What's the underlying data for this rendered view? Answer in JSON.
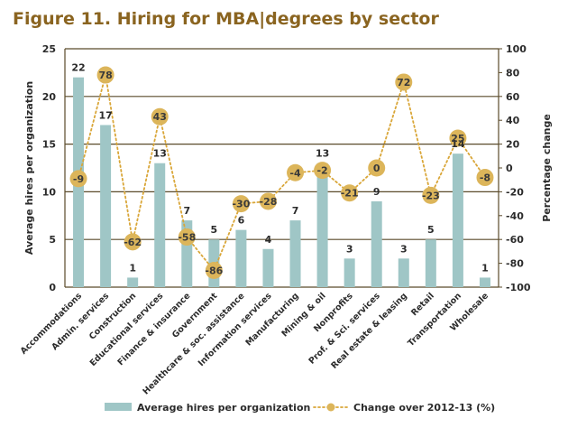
{
  "title": "Figure 11. Hiring for MBA|degrees by sector",
  "colors": {
    "bar": "#9fc6c6",
    "line": "#d9a638",
    "marker": "#dcb55a",
    "title": "#8a6420",
    "grid": "#5a4a2a"
  },
  "chart_data": {
    "type": "bar",
    "categories": [
      "Accommodations",
      "Admin. services",
      "Construction",
      "Educational services",
      "Finance & insurance",
      "Government",
      "Healthcare & soc. assistance",
      "Information services",
      "Manufacturing",
      "Mining & oil",
      "Nonprofits",
      "Prof. & Sci. services",
      "Real estate & leasing",
      "Retail",
      "Transportation",
      "Wholesale"
    ],
    "series": [
      {
        "name": "Average hires per organization",
        "type": "bar",
        "axis": "left",
        "values": [
          22,
          17,
          1,
          13,
          7,
          5,
          6,
          4,
          7,
          13,
          3,
          9,
          3,
          5,
          14,
          1
        ]
      },
      {
        "name": "Change over 2012-13 (%)",
        "type": "line",
        "axis": "right",
        "values": [
          -9,
          78,
          -62,
          43,
          -58,
          -86,
          -30,
          -28,
          -4,
          -2,
          -21,
          0,
          72,
          -23,
          25,
          -8
        ]
      }
    ],
    "ylabel": "Average hires per organization",
    "y2label": "Percentage change",
    "ylim": [
      0,
      25
    ],
    "y2lim": [
      -100,
      100
    ],
    "yticks": [
      0,
      5,
      10,
      15,
      20,
      25
    ],
    "y2ticks": [
      -100,
      -80,
      -60,
      -40,
      -20,
      0,
      20,
      40,
      60,
      80,
      100
    ],
    "grid": true,
    "legend": "bottom"
  }
}
